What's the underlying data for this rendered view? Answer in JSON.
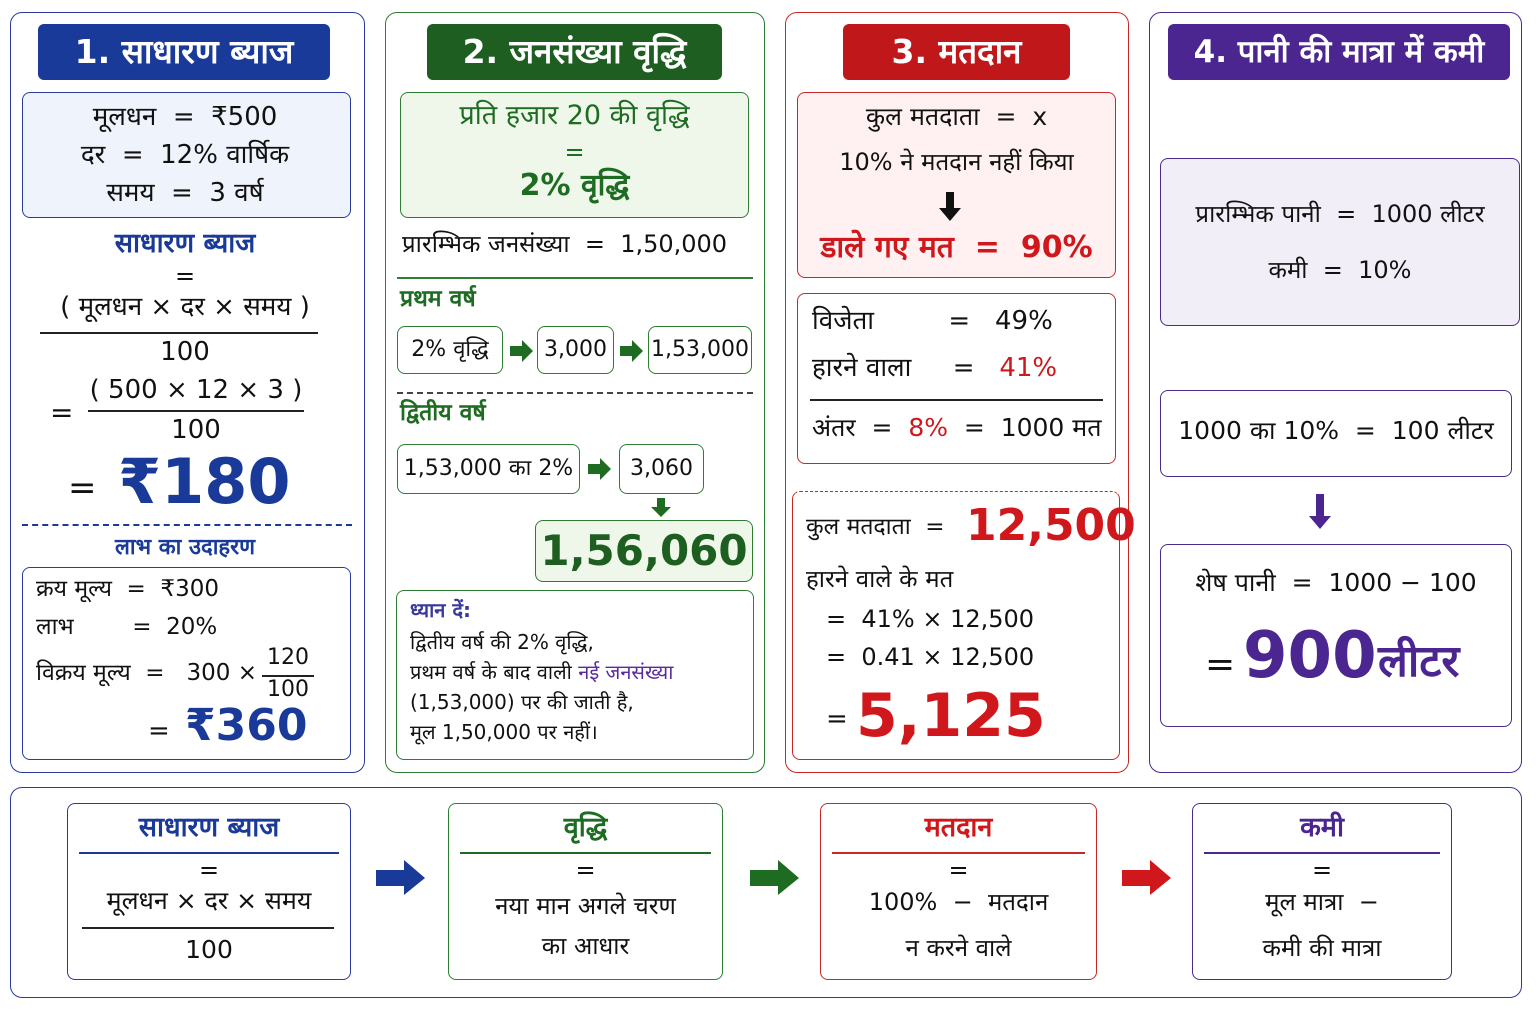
{
  "simple_interest": {
    "title": "1. साधारण ब्याज",
    "given": [
      "मूलधन  =  ₹500",
      "दर  =  12% वार्षिक",
      "समय  =  3 वर्ष"
    ],
    "formula_label": "साधारण ब्याज",
    "formula_eq": "=",
    "formula_num": "( मूलधन × दर × समय )",
    "formula_den": "100",
    "calc_eq": "=",
    "calc_num": "( 500 × 12 × 3 )",
    "calc_den": "100",
    "result_eq": "=",
    "result": "₹180",
    "example_title": "लाभ का उदाहरण",
    "example": [
      "क्रय मूल्य  =  ₹300",
      "लाभ        =  20%"
    ],
    "sp_label": "विक्रय मूल्य  =   300 ×",
    "sp_num": "120",
    "sp_den": "100",
    "sp_eq": "=",
    "sp_result": "₹360"
  },
  "population": {
    "title": "2. जनसंख्या वृद्धि",
    "rate": [
      "प्रति हजार 20 की वृद्धि",
      "=",
      "2% वृद्धि"
    ],
    "initial": "प्रारम्भिक जनसंख्या  =  1,50,000",
    "year1_title": "प्रथम वर्ष",
    "year1_steps": [
      "2% वृद्धि",
      "3,000",
      "1,53,000"
    ],
    "year2_title": "द्वितीय वर्ष",
    "year2_steps": [
      "1,53,000 का 2%",
      "3,060"
    ],
    "result": "1,56,060",
    "note_title": "ध्यान दें:",
    "note_line1": "द्वितीय वर्ष की 2% वृद्धि,",
    "note_line2": "प्रथम वर्ष के बाद वाली ",
    "note_highlight": "नई जनसंख्या",
    "note_line3": "(1,53,000) पर की जाती है,",
    "note_line4": "मूल 1,50,000 पर नहीं।"
  },
  "voting": {
    "title": "3. मतदान",
    "total": "कुल मतदाता  =  x",
    "not_voted": "10% ने मतदान नहीं किया",
    "cast": "डाले गए मत  =  90%",
    "winner": "विजेता         =   49%",
    "loser_label": "हारने वाला     =   ",
    "loser_value": "41%",
    "diff_label": "अंतर  =  ",
    "diff_value": "8%",
    "diff_rest": "  =  1000 मत",
    "total_label": "कुल मतदाता  =",
    "total_value": "12,500",
    "loser_votes_label": "हारने वाले के मत",
    "steps": [
      "=  41% × 12,500",
      "=  0.41 × 12,500"
    ],
    "result_eq": "=",
    "result": "5,125"
  },
  "water": {
    "title": "4. पानी की मात्रा में कमी",
    "initial": "प्रारम्भिक पानी  =  1000 लीटर",
    "decrease": "कमी  =  10%",
    "calc": "1000 का 10%  =  100 लीटर",
    "remaining": "शेष पानी  =  1000 − 100",
    "result_eq": "=",
    "result": "900",
    "result_unit": "लीटर"
  },
  "summary": [
    {
      "title": "साधारण ब्याज",
      "eq": "=",
      "lines": [
        "मूलधन × दर × समय",
        "100"
      ]
    },
    {
      "title": "वृद्धि",
      "eq": "=",
      "lines": [
        "नया मान अगले चरण",
        "का आधार"
      ]
    },
    {
      "title": "मतदान",
      "eq": "=",
      "lines": [
        "100%  −  मतदान",
        "न करने वाले"
      ]
    },
    {
      "title": "कमी",
      "eq": "=",
      "lines": [
        "मूल मात्रा  −",
        "कमी की मात्रा"
      ]
    }
  ]
}
